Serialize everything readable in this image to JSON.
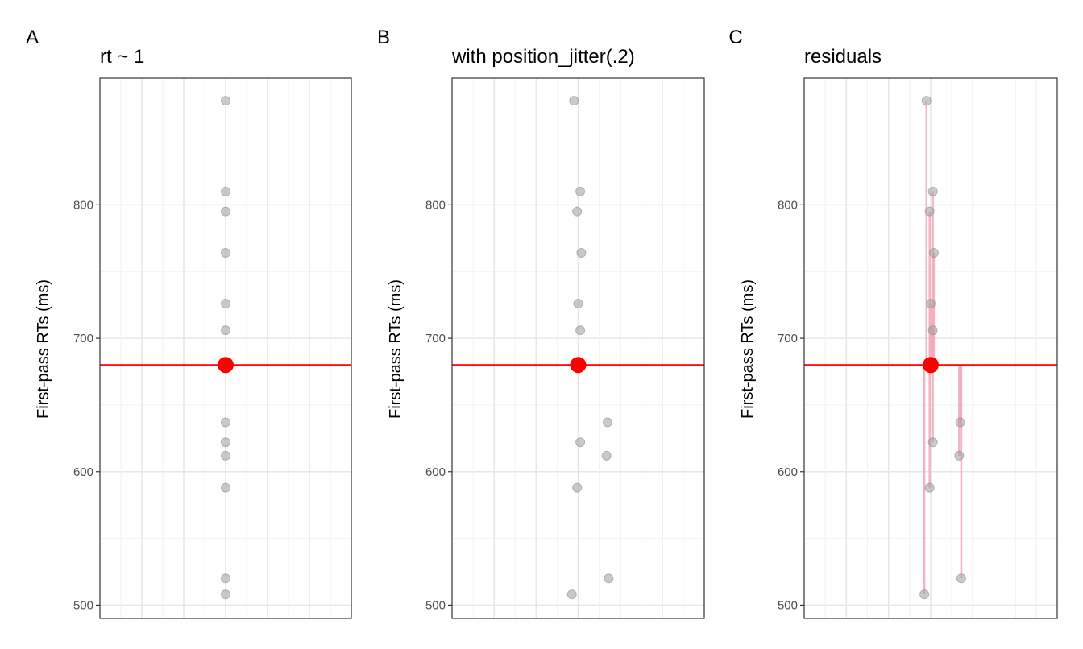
{
  "chart_data": [
    {
      "type": "scatter",
      "tag": "A",
      "title": "rt ~ 1",
      "ylabel": "First-pass RTs (ms)",
      "ylim": [
        490,
        895
      ],
      "yticks": [
        500,
        600,
        700,
        800
      ],
      "grid": true,
      "mean": 680,
      "residual_lines": false,
      "points": [
        {
          "x": 0,
          "y": 878
        },
        {
          "x": 0,
          "y": 810
        },
        {
          "x": 0,
          "y": 795
        },
        {
          "x": 0,
          "y": 764
        },
        {
          "x": 0,
          "y": 726
        },
        {
          "x": 0,
          "y": 706
        },
        {
          "x": 0,
          "y": 637
        },
        {
          "x": 0,
          "y": 622
        },
        {
          "x": 0,
          "y": 612
        },
        {
          "x": 0,
          "y": 588
        },
        {
          "x": 0,
          "y": 520
        },
        {
          "x": 0,
          "y": 508
        }
      ]
    },
    {
      "type": "scatter",
      "tag": "B",
      "title": "with position_jitter(.2)",
      "ylabel": "First-pass RTs (ms)",
      "ylim": [
        490,
        895
      ],
      "yticks": [
        500,
        600,
        700,
        800
      ],
      "grid": true,
      "mean": 680,
      "residual_lines": false,
      "points": [
        {
          "x": -0.02,
          "y": 878
        },
        {
          "x": 0.01,
          "y": 810
        },
        {
          "x": -0.005,
          "y": 795
        },
        {
          "x": 0.015,
          "y": 764
        },
        {
          "x": 0.0,
          "y": 726
        },
        {
          "x": 0.01,
          "y": 706
        },
        {
          "x": 0.14,
          "y": 637
        },
        {
          "x": 0.01,
          "y": 622
        },
        {
          "x": 0.135,
          "y": 612
        },
        {
          "x": -0.005,
          "y": 588
        },
        {
          "x": 0.145,
          "y": 520
        },
        {
          "x": -0.03,
          "y": 508
        }
      ]
    },
    {
      "type": "scatter",
      "tag": "C",
      "title": "residuals",
      "ylabel": "First-pass RTs (ms)",
      "ylim": [
        490,
        895
      ],
      "yticks": [
        500,
        600,
        700,
        800
      ],
      "grid": true,
      "mean": 680,
      "residual_lines": true,
      "points": [
        {
          "x": -0.02,
          "y": 878
        },
        {
          "x": 0.01,
          "y": 810
        },
        {
          "x": -0.005,
          "y": 795
        },
        {
          "x": 0.015,
          "y": 764
        },
        {
          "x": 0.0,
          "y": 726
        },
        {
          "x": 0.01,
          "y": 706
        },
        {
          "x": 0.14,
          "y": 637
        },
        {
          "x": 0.01,
          "y": 622
        },
        {
          "x": 0.135,
          "y": 612
        },
        {
          "x": -0.005,
          "y": 588
        },
        {
          "x": 0.145,
          "y": 520
        },
        {
          "x": -0.03,
          "y": 508
        }
      ]
    }
  ],
  "colors": {
    "points": "#9e9e9e",
    "mean": "#ff0000",
    "residual": "#f4a7b9",
    "grid_major": "#e6e6e6",
    "grid_minor": "#f2f2f2",
    "border": "#333333"
  }
}
